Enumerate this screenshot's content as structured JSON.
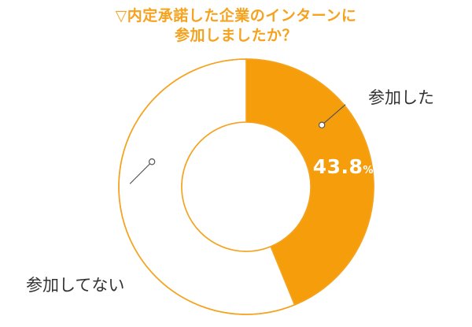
{
  "title_lines": [
    "▽内定承諾した企業のインターンに",
    "参加しましたか？"
  ],
  "colors": {
    "accent": "#f5a31e",
    "slice_filled": "#f59d0a",
    "slice_empty": "#ffffff",
    "outline": "#f5a31e",
    "text": "#333333",
    "leader": "#555555"
  },
  "chart_data": {
    "type": "pie",
    "title": "▽内定承諾した企業のインターンに参加しましたか？",
    "donut": true,
    "slices": [
      {
        "label": "参加した",
        "value": 43.8
      },
      {
        "label": "参加してない",
        "value": 56.2
      }
    ],
    "data_labels": [
      {
        "slice": "参加した",
        "number": "43.8",
        "unit": "%"
      }
    ]
  }
}
